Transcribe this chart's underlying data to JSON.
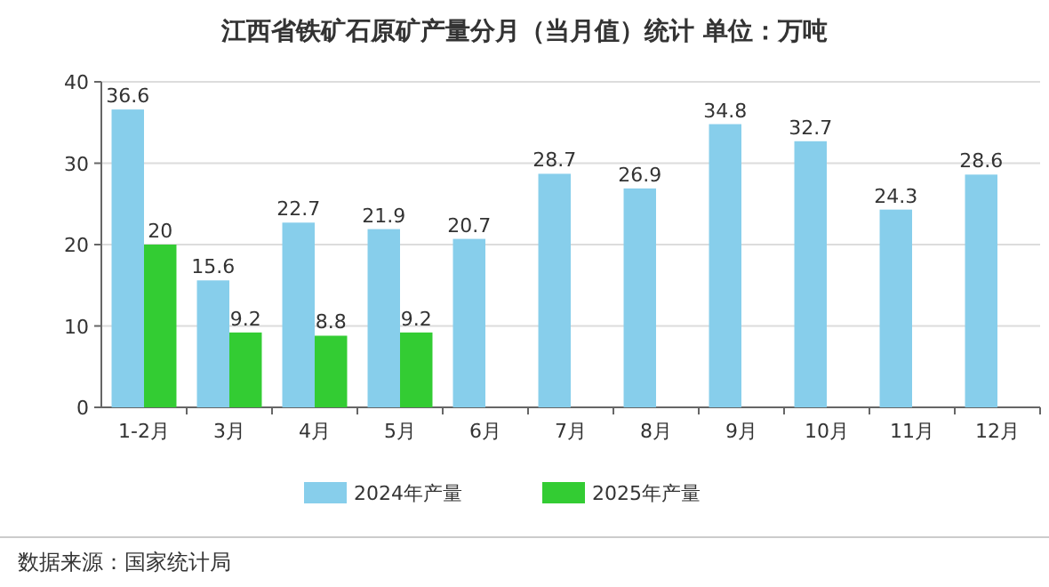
{
  "chart_data": {
    "type": "bar",
    "title": "江西省铁矿石原矿产量分月（当月值）统计  单位：万吨",
    "categories": [
      "1-2月",
      "3月",
      "4月",
      "5月",
      "6月",
      "7月",
      "8月",
      "9月",
      "10月",
      "11月",
      "12月"
    ],
    "series": [
      {
        "name": "2024年产量",
        "color": "#87ceeb",
        "values": [
          36.6,
          15.6,
          22.7,
          21.9,
          20.7,
          28.7,
          26.9,
          34.8,
          32.7,
          24.3,
          28.6
        ]
      },
      {
        "name": "2025年产量",
        "color": "#33cc33",
        "values": [
          20,
          9.2,
          8.8,
          9.2,
          null,
          null,
          null,
          null,
          null,
          null,
          null
        ]
      }
    ],
    "ylim": [
      0,
      40
    ],
    "yticks": [
      0,
      10,
      20,
      30,
      40
    ],
    "grid": "y",
    "legend": "bottom",
    "data_labels": true,
    "annotations": [
      "数据来源：国家统计局"
    ]
  }
}
